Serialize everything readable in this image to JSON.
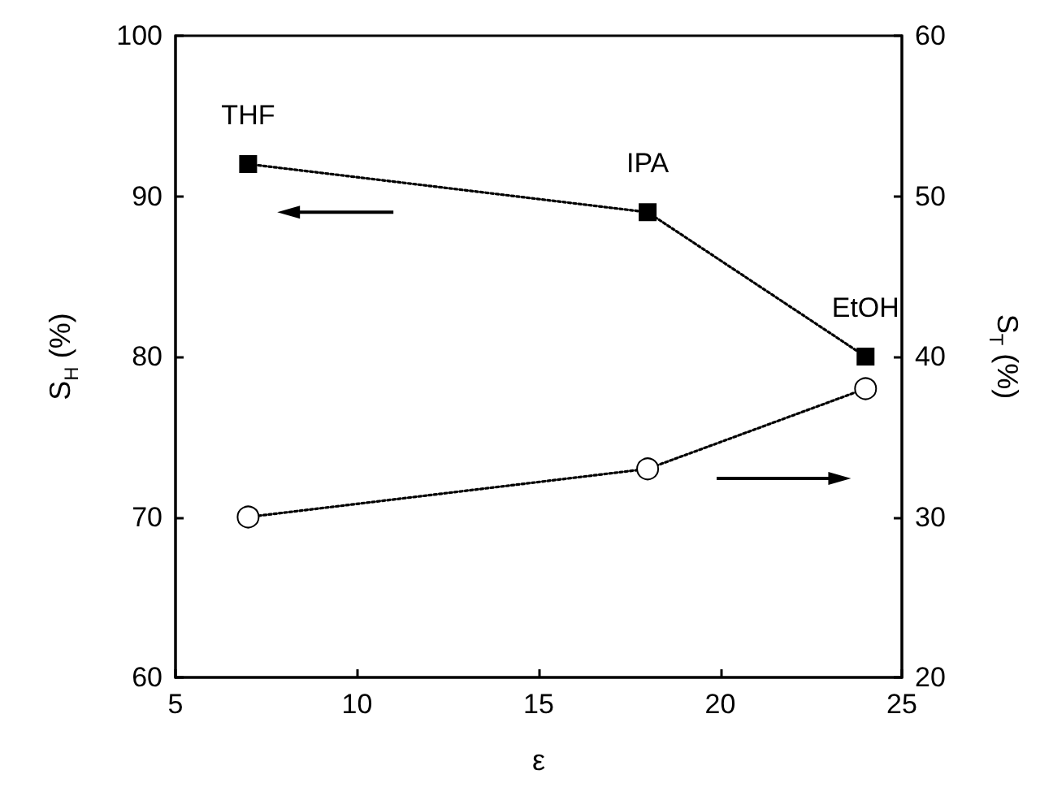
{
  "chart_data": {
    "type": "line",
    "xlabel": "ε",
    "ylabel": "S$_{H}$ (%)",
    "y2label": "S$_{T}$ (%)",
    "x": [
      7,
      18,
      24
    ],
    "series": [
      {
        "color": "#000000",
        "values": [
          92,
          89,
          80
        ],
        "marker": "square"
      },
      {
        "color": "#000000",
        "values": [
          30,
          33,
          38
        ],
        "marker": "circle",
        "axis": "y2"
      }
    ],
    "xlim": [
      5,
      25
    ],
    "xticks": [
      5,
      10,
      15,
      20,
      25
    ],
    "ylim": [
      60,
      100
    ],
    "yticks": [
      60,
      70,
      80,
      90,
      100
    ],
    "y2lim": [
      20,
      60
    ],
    "y2ticks": [
      20,
      30,
      40,
      50,
      60
    ],
    "annotations": [
      {
        "text": "THF",
        "x": 7,
        "y": 92
      },
      {
        "text": "IPA",
        "x": 18,
        "y": 89
      },
      {
        "text": "EtOH",
        "x": 24,
        "y": 80
      }
    ],
    "line_style": "dotted"
  }
}
